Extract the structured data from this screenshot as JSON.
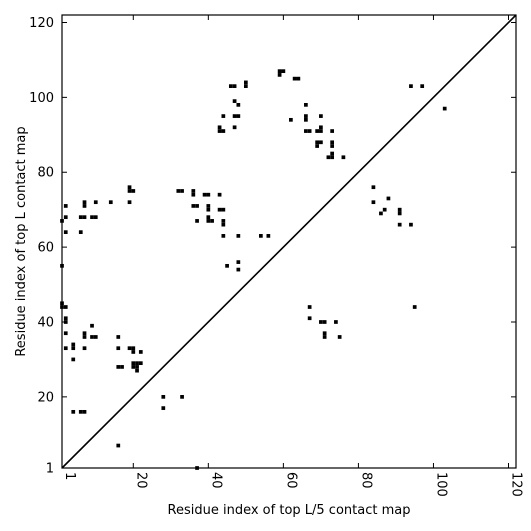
{
  "chart_data": {
    "type": "scatter",
    "title": "",
    "xlabel": "Residue index of top L/5 contact map",
    "ylabel": "Residue index of top L contact map",
    "xlim": [
      1,
      122
    ],
    "ylim": [
      1,
      122
    ],
    "xticks": [
      1,
      20,
      40,
      60,
      80,
      100,
      120
    ],
    "yticks": [
      1,
      20,
      40,
      60,
      80,
      100,
      120
    ],
    "xtick_labels": [
      "1",
      "20",
      "40",
      "60",
      "80",
      "100",
      "120"
    ],
    "ytick_labels": [
      "1",
      "20",
      "40",
      "60",
      "80",
      "100",
      "120"
    ],
    "grid": false,
    "marker": "square",
    "color": "#000000",
    "diagonal": {
      "from": [
        1,
        1
      ],
      "to": [
        122,
        122
      ]
    },
    "points": [
      [
        2,
        64
      ],
      [
        2,
        68
      ],
      [
        2,
        71
      ],
      [
        1,
        67
      ],
      [
        1,
        55
      ],
      [
        1,
        45
      ],
      [
        1,
        44
      ],
      [
        2,
        44
      ],
      [
        2,
        41
      ],
      [
        2,
        40
      ],
      [
        2,
        37
      ],
      [
        2,
        33
      ],
      [
        4,
        34
      ],
      [
        4,
        33
      ],
      [
        4,
        30
      ],
      [
        4,
        16
      ],
      [
        6,
        16
      ],
      [
        7,
        16
      ],
      [
        6,
        64
      ],
      [
        6,
        68
      ],
      [
        7,
        68
      ],
      [
        7,
        71
      ],
      [
        7,
        72
      ],
      [
        9,
        68
      ],
      [
        10,
        68
      ],
      [
        10,
        72
      ],
      [
        9,
        39
      ],
      [
        7,
        37
      ],
      [
        7,
        36
      ],
      [
        9,
        36
      ],
      [
        10,
        36
      ],
      [
        7,
        33
      ],
      [
        14,
        72
      ],
      [
        16,
        36
      ],
      [
        16,
        33
      ],
      [
        16,
        28
      ],
      [
        17,
        28
      ],
      [
        16,
        7
      ],
      [
        19,
        75
      ],
      [
        19,
        76
      ],
      [
        20,
        75
      ],
      [
        19,
        72
      ],
      [
        19,
        33
      ],
      [
        20,
        33
      ],
      [
        20,
        32
      ],
      [
        20,
        29
      ],
      [
        21,
        29
      ],
      [
        22,
        29
      ],
      [
        20,
        28
      ],
      [
        21,
        28
      ],
      [
        21,
        27
      ],
      [
        22,
        32
      ],
      [
        28,
        20
      ],
      [
        28,
        17
      ],
      [
        32,
        75
      ],
      [
        33,
        75
      ],
      [
        33,
        20
      ],
      [
        36,
        75
      ],
      [
        36,
        74
      ],
      [
        36,
        71
      ],
      [
        37,
        71
      ],
      [
        37,
        67
      ],
      [
        37,
        1
      ],
      [
        39,
        74
      ],
      [
        40,
        74
      ],
      [
        40,
        71
      ],
      [
        40,
        70
      ],
      [
        40,
        68
      ],
      [
        40,
        67
      ],
      [
        41,
        67
      ],
      [
        43,
        74
      ],
      [
        43,
        70
      ],
      [
        44,
        70
      ],
      [
        44,
        67
      ],
      [
        44,
        66
      ],
      [
        44,
        63
      ],
      [
        43,
        92
      ],
      [
        43,
        91
      ],
      [
        44,
        91
      ],
      [
        44,
        95
      ],
      [
        45,
        55
      ],
      [
        46,
        103
      ],
      [
        47,
        103
      ],
      [
        47,
        99
      ],
      [
        47,
        95
      ],
      [
        48,
        95
      ],
      [
        48,
        98
      ],
      [
        47,
        92
      ],
      [
        48,
        63
      ],
      [
        48,
        56
      ],
      [
        48,
        54
      ],
      [
        50,
        103
      ],
      [
        50,
        104
      ],
      [
        54,
        63
      ],
      [
        56,
        63
      ],
      [
        59,
        107
      ],
      [
        59,
        106
      ],
      [
        60,
        107
      ],
      [
        62,
        94
      ],
      [
        63,
        105
      ],
      [
        64,
        105
      ],
      [
        66,
        98
      ],
      [
        66,
        95
      ],
      [
        66,
        94
      ],
      [
        66,
        91
      ],
      [
        67,
        91
      ],
      [
        67,
        44
      ],
      [
        67,
        41
      ],
      [
        69,
        91
      ],
      [
        69,
        88
      ],
      [
        69,
        87
      ],
      [
        70,
        92
      ],
      [
        70,
        91
      ],
      [
        70,
        95
      ],
      [
        70,
        88
      ],
      [
        70,
        40
      ],
      [
        71,
        40
      ],
      [
        71,
        37
      ],
      [
        71,
        36
      ],
      [
        72,
        84
      ],
      [
        73,
        84
      ],
      [
        73,
        85
      ],
      [
        73,
        87
      ],
      [
        73,
        88
      ],
      [
        73,
        91
      ],
      [
        74,
        40
      ],
      [
        75,
        36
      ],
      [
        76,
        84
      ],
      [
        84,
        76
      ],
      [
        84,
        72
      ],
      [
        86,
        69
      ],
      [
        87,
        70
      ],
      [
        88,
        73
      ],
      [
        91,
        70
      ],
      [
        91,
        69
      ],
      [
        91,
        66
      ],
      [
        94,
        66
      ],
      [
        94,
        103
      ],
      [
        95,
        44
      ],
      [
        97,
        103
      ],
      [
        103,
        97
      ]
    ]
  }
}
